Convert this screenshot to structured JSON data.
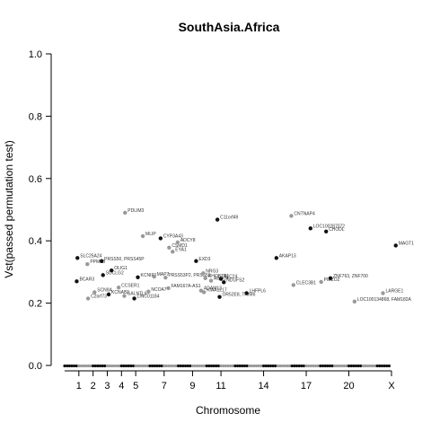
{
  "chart_data": {
    "type": "scatter",
    "title": "SouthAsia.Africa",
    "xlabel": "Chromosome",
    "ylabel": "Vst(passed permutation test)",
    "ylim": [
      0,
      1
    ],
    "yticks": [
      "0.0",
      "0.2",
      "0.4",
      "0.6",
      "0.8",
      "1.0"
    ],
    "yticks_values": [
      0,
      0.2,
      0.4,
      0.6,
      0.8,
      1.0
    ],
    "xticks": [
      {
        "label": "1",
        "pos": 1
      },
      {
        "label": "2",
        "pos": 2
      },
      {
        "label": "3",
        "pos": 3
      },
      {
        "label": "4",
        "pos": 4
      },
      {
        "label": "5",
        "pos": 5
      },
      {
        "label": "7",
        "pos": 7
      },
      {
        "label": "9",
        "pos": 9
      },
      {
        "label": "11",
        "pos": 11
      },
      {
        "label": "14",
        "pos": 14
      },
      {
        "label": "17",
        "pos": 17
      },
      {
        "label": "20",
        "pos": 20
      },
      {
        "label": "X",
        "pos": 23
      }
    ],
    "colors": {
      "odd": "#111111",
      "even": "#999999"
    },
    "points": [
      {
        "label": "BCAR3",
        "chrom": 1,
        "x": 0.85,
        "y": 0.27
      },
      {
        "label": "SLC25A24",
        "chrom": 1,
        "x": 0.9,
        "y": 0.345
      },
      {
        "label": "PPM1B",
        "chrom": 2,
        "x": 1.6,
        "y": 0.325
      },
      {
        "label": "C2orf73",
        "chrom": 2,
        "x": 1.65,
        "y": 0.215
      },
      {
        "label": "SCN9A",
        "chrom": 2,
        "x": 2.1,
        "y": 0.235
      },
      {
        "label": "PRSS50, PRSS45P",
        "chrom": 3,
        "x": 2.6,
        "y": 0.335
      },
      {
        "label": "SUCLG2",
        "chrom": 3,
        "x": 2.7,
        "y": 0.29
      },
      {
        "label": "OLIG1",
        "chrom": 3,
        "x": 3.3,
        "y": 0.305
      },
      {
        "label": "KCNAB1",
        "chrom": 3,
        "x": 3.1,
        "y": 0.228
      },
      {
        "label": "CCSER1",
        "chrom": 4,
        "x": 3.8,
        "y": 0.25
      },
      {
        "label": "GALNTL6",
        "chrom": 4,
        "x": 4.2,
        "y": 0.223
      },
      {
        "label": "PDLIM3",
        "chrom": 4,
        "x": 4.25,
        "y": 0.49
      },
      {
        "label": "LINC01184",
        "chrom": 5,
        "x": 4.9,
        "y": 0.215
      },
      {
        "label": "KCNIP1",
        "chrom": 5,
        "x": 5.15,
        "y": 0.283
      },
      {
        "label": "MLIP",
        "chrom": 6,
        "x": 5.5,
        "y": 0.415
      },
      {
        "label": "NCOA7",
        "chrom": 6,
        "x": 5.9,
        "y": 0.237
      },
      {
        "label": "MAP7",
        "chrom": 6,
        "x": 6.3,
        "y": 0.285
      },
      {
        "label": "CYP3A43",
        "chrom": 7,
        "x": 6.75,
        "y": 0.408
      },
      {
        "label": "CSMD1",
        "chrom": 8,
        "x": 7.35,
        "y": 0.378
      },
      {
        "label": "ADCY8",
        "chrom": 8,
        "x": 7.95,
        "y": 0.395
      },
      {
        "label": "EYA1",
        "chrom": 8,
        "x": 7.6,
        "y": 0.365
      },
      {
        "label": "FAM167A-AS1",
        "chrom": 8,
        "x": 7.3,
        "y": 0.248
      },
      {
        "label": "PRSS53P2, PRSS51",
        "chrom": 8,
        "x": 7.1,
        "y": 0.282
      },
      {
        "label": "EXD3",
        "chrom": 9,
        "x": 9.25,
        "y": 0.335
      },
      {
        "label": "NRG3",
        "chrom": 10,
        "x": 9.75,
        "y": 0.296
      },
      {
        "label": "RHOBTB1",
        "chrom": 10,
        "x": 9.9,
        "y": 0.28
      },
      {
        "label": "ABCC4",
        "chrom": 10,
        "x": 10.3,
        "y": 0.272
      },
      {
        "label": "ADAM12",
        "chrom": 10,
        "x": 9.6,
        "y": 0.24
      },
      {
        "label": "KIAA1217",
        "chrom": 10,
        "x": 9.8,
        "y": 0.235
      },
      {
        "label": "C11orf49",
        "chrom": 11,
        "x": 10.75,
        "y": 0.468
      },
      {
        "label": "SLC24",
        "chrom": 11,
        "x": 11.0,
        "y": 0.278
      },
      {
        "label": "NDUFS2",
        "chrom": 11,
        "x": 11.2,
        "y": 0.267
      },
      {
        "label": "OR52E8, TRIM6",
        "chrom": 11,
        "x": 10.9,
        "y": 0.22
      },
      {
        "label": "LHFPL6",
        "chrom": 13,
        "x": 12.8,
        "y": 0.232
      },
      {
        "label": "AKAP13",
        "chrom": 15,
        "x": 14.9,
        "y": 0.345
      },
      {
        "label": "CNTNAP4",
        "chrom": 16,
        "x": 15.95,
        "y": 0.48
      },
      {
        "label": "LOC100287072",
        "chrom": 17,
        "x": 17.3,
        "y": 0.44
      },
      {
        "label": "CHODL",
        "chrom": 17,
        "x": 18.4,
        "y": 0.43
      },
      {
        "label": "CLEC3B1",
        "chrom": 16,
        "x": 16.1,
        "y": 0.258
      },
      {
        "label": "PIEZO2",
        "chrom": 18,
        "x": 18.05,
        "y": 0.268
      },
      {
        "label": "ZNF763, ZNF700",
        "chrom": 19,
        "x": 18.7,
        "y": 0.28
      },
      {
        "label": "MAGT1",
        "chrom": 23,
        "x": 23.3,
        "y": 0.385
      },
      {
        "label": "LARGE1",
        "chrom": 22,
        "x": 22.4,
        "y": 0.232
      },
      {
        "label": "LOC100134868, FAM182A",
        "chrom": 20,
        "x": 20.4,
        "y": 0.205
      }
    ]
  }
}
